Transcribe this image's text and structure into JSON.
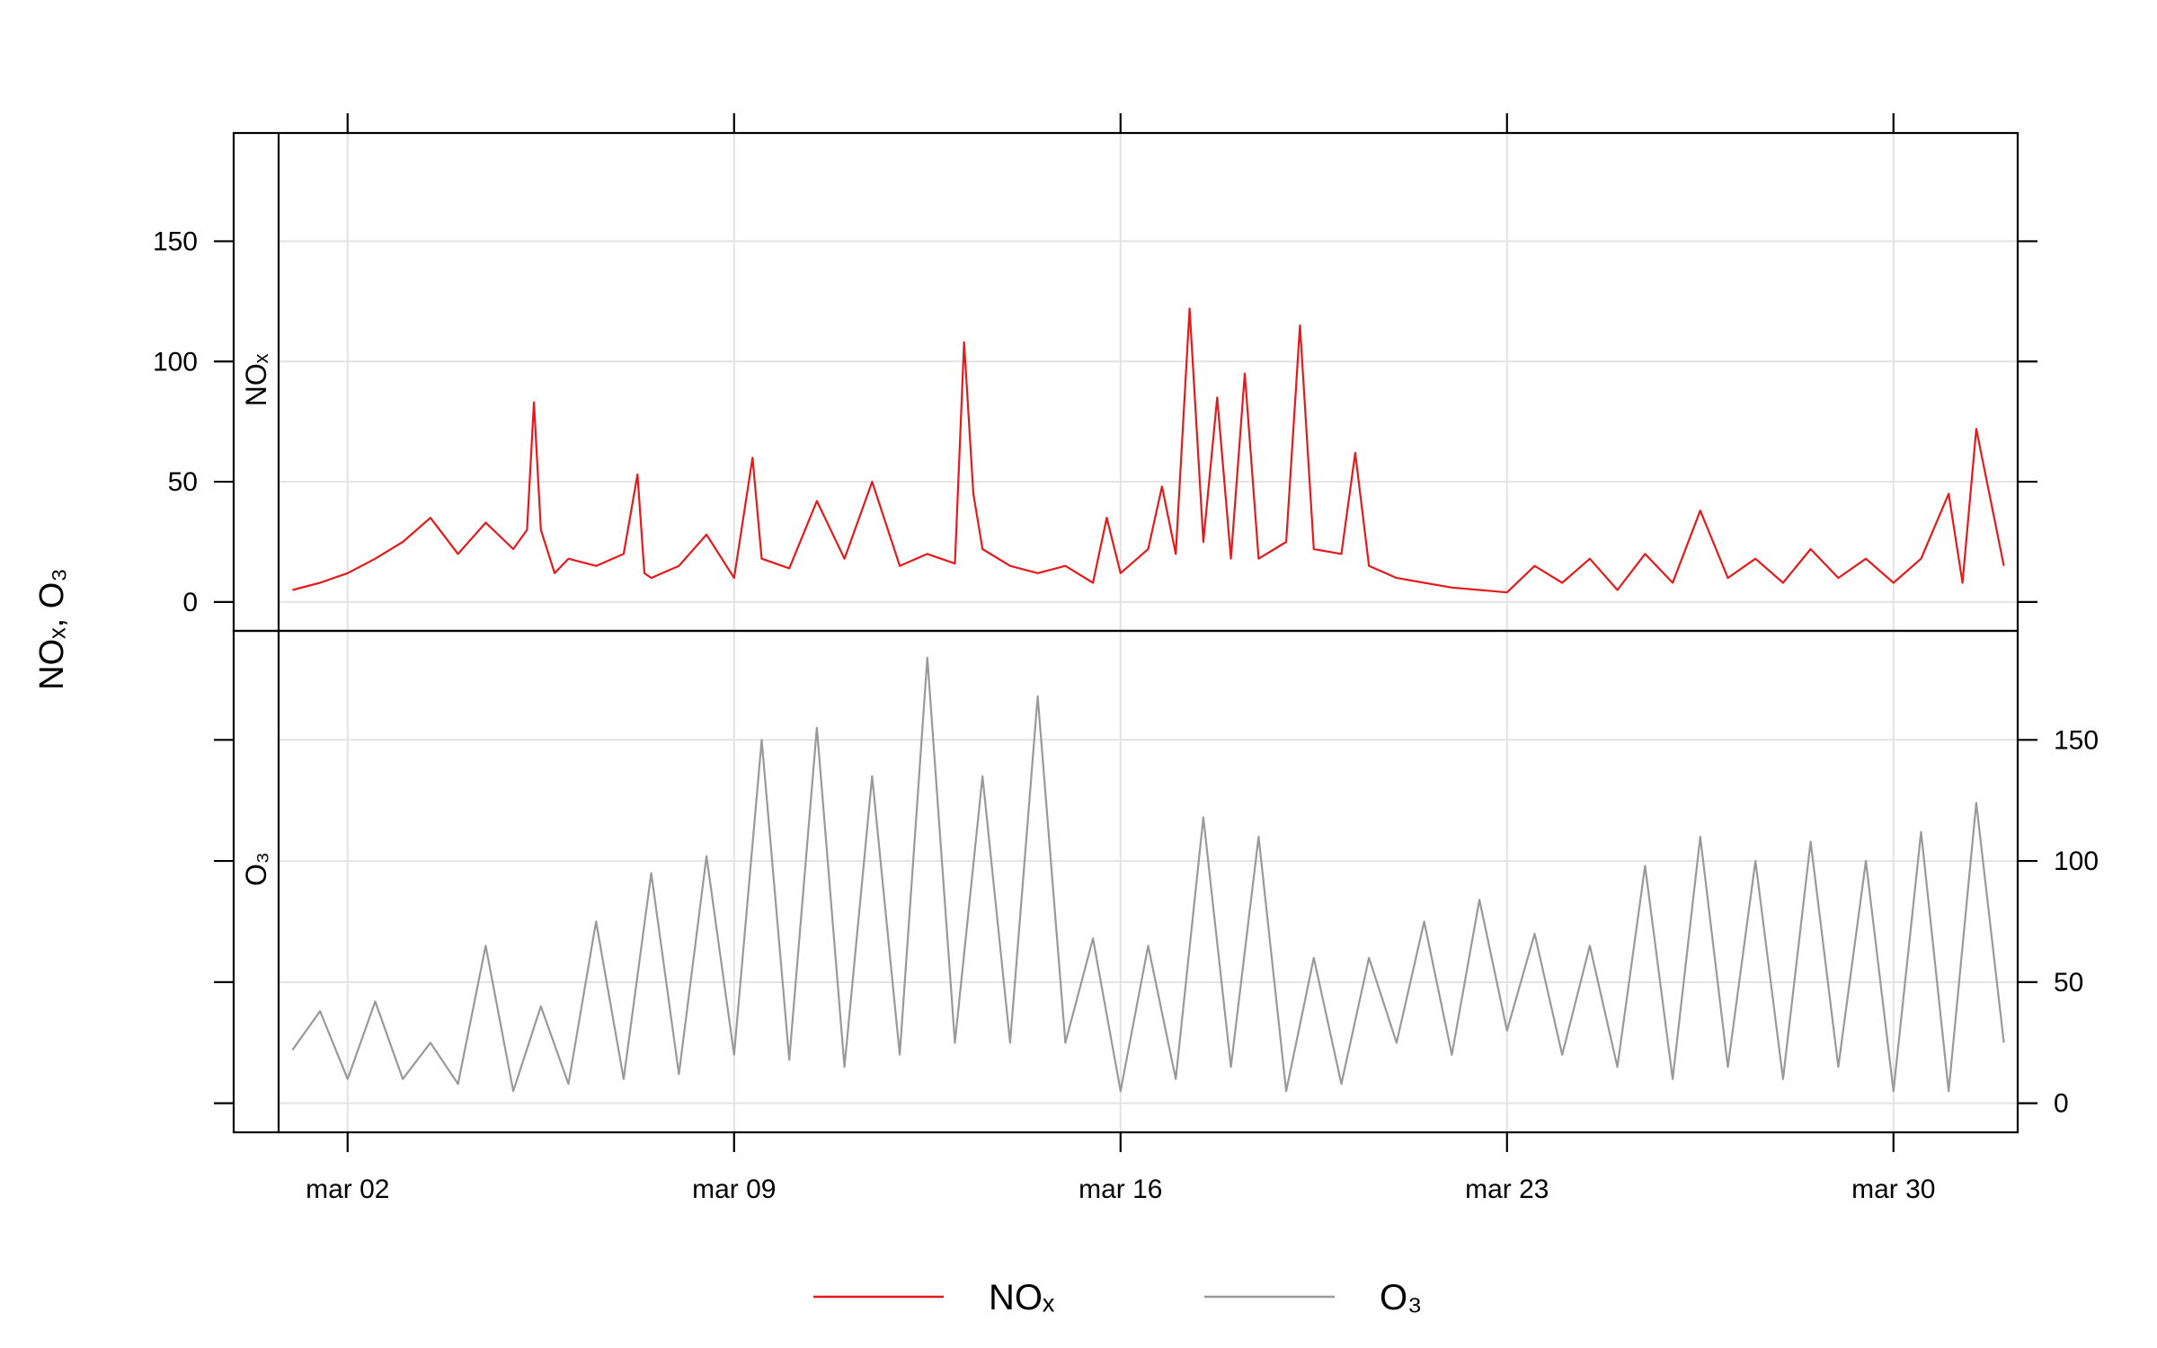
{
  "chart_data": {
    "type": "line",
    "layout": "two stacked panels sharing the x axis; NOx on top with y ticks on left, O3 below with y ticks on right",
    "ylabel": "NOₓ, O₃",
    "x_tick_labels": [
      "mar 02",
      "mar 09",
      "mar 16",
      "mar 23",
      "mar 30"
    ],
    "x_tick_dates": [
      "2024-03-02",
      "2024-03-09",
      "2024-03-16",
      "2024-03-23",
      "2024-03-30"
    ],
    "xlim": [
      "2024-02-29T18:00",
      "2024-04-01T06:00"
    ],
    "ylim": [
      -12,
      195
    ],
    "y_ticks": [
      0,
      50,
      100,
      150
    ],
    "y_tick_labels": [
      "0",
      "50",
      "100",
      "150"
    ],
    "grid": true,
    "legend": {
      "position": "bottom"
    },
    "series": [
      {
        "name": "NOₓ",
        "panel_label": "NOₓ",
        "color": "#e41a1c",
        "x": [
          "2024-03-01T00:00",
          "2024-03-01T12:00",
          "2024-03-02T00:00",
          "2024-03-02T12:00",
          "2024-03-03T00:00",
          "2024-03-03T12:00",
          "2024-03-04T00:00",
          "2024-03-04T12:00",
          "2024-03-05T00:00",
          "2024-03-05T06:00",
          "2024-03-05T09:00",
          "2024-03-05T12:00",
          "2024-03-05T18:00",
          "2024-03-06T00:00",
          "2024-03-06T12:00",
          "2024-03-07T00:00",
          "2024-03-07T06:00",
          "2024-03-07T09:00",
          "2024-03-07T12:00",
          "2024-03-08T00:00",
          "2024-03-08T12:00",
          "2024-03-09T00:00",
          "2024-03-09T08:00",
          "2024-03-09T12:00",
          "2024-03-10T00:00",
          "2024-03-10T12:00",
          "2024-03-11T00:00",
          "2024-03-11T12:00",
          "2024-03-12T00:00",
          "2024-03-12T12:00",
          "2024-03-13T00:00",
          "2024-03-13T04:00",
          "2024-03-13T08:00",
          "2024-03-13T12:00",
          "2024-03-14T00:00",
          "2024-03-14T12:00",
          "2024-03-15T00:00",
          "2024-03-15T12:00",
          "2024-03-15T18:00",
          "2024-03-16T00:00",
          "2024-03-16T12:00",
          "2024-03-16T18:00",
          "2024-03-17T00:00",
          "2024-03-17T06:00",
          "2024-03-17T12:00",
          "2024-03-17T18:00",
          "2024-03-18T00:00",
          "2024-03-18T06:00",
          "2024-03-18T12:00",
          "2024-03-19T00:00",
          "2024-03-19T06:00",
          "2024-03-19T12:00",
          "2024-03-20T00:00",
          "2024-03-20T06:00",
          "2024-03-20T12:00",
          "2024-03-21T00:00",
          "2024-03-21T12:00",
          "2024-03-22T00:00",
          "2024-03-22T12:00",
          "2024-03-23T00:00",
          "2024-03-23T12:00",
          "2024-03-24T00:00",
          "2024-03-24T12:00",
          "2024-03-25T00:00",
          "2024-03-25T12:00",
          "2024-03-26T00:00",
          "2024-03-26T12:00",
          "2024-03-27T00:00",
          "2024-03-27T12:00",
          "2024-03-28T00:00",
          "2024-03-28T12:00",
          "2024-03-29T00:00",
          "2024-03-29T12:00",
          "2024-03-30T00:00",
          "2024-03-30T12:00",
          "2024-03-31T00:00",
          "2024-03-31T06:00",
          "2024-03-31T12:00",
          "2024-04-01T00:00"
        ],
        "values": [
          5,
          8,
          12,
          18,
          25,
          35,
          20,
          33,
          22,
          30,
          83,
          30,
          12,
          18,
          15,
          20,
          53,
          12,
          10,
          15,
          28,
          10,
          60,
          18,
          14,
          42,
          18,
          50,
          15,
          20,
          16,
          108,
          45,
          22,
          15,
          12,
          15,
          8,
          35,
          12,
          22,
          48,
          20,
          122,
          25,
          85,
          18,
          95,
          18,
          25,
          115,
          22,
          20,
          62,
          15,
          10,
          8,
          6,
          5,
          4,
          15,
          8,
          18,
          5,
          20,
          8,
          38,
          10,
          18,
          8,
          22,
          10,
          18,
          8,
          18,
          45,
          8,
          72,
          15
        ]
      },
      {
        "name": "O₃",
        "panel_label": "O₃",
        "color": "#999999",
        "x": [
          "2024-03-01T00:00",
          "2024-03-01T12:00",
          "2024-03-02T00:00",
          "2024-03-02T12:00",
          "2024-03-03T00:00",
          "2024-03-03T12:00",
          "2024-03-04T00:00",
          "2024-03-04T12:00",
          "2024-03-05T00:00",
          "2024-03-05T12:00",
          "2024-03-06T00:00",
          "2024-03-06T12:00",
          "2024-03-07T00:00",
          "2024-03-07T12:00",
          "2024-03-08T00:00",
          "2024-03-08T12:00",
          "2024-03-09T00:00",
          "2024-03-09T12:00",
          "2024-03-10T00:00",
          "2024-03-10T12:00",
          "2024-03-11T00:00",
          "2024-03-11T12:00",
          "2024-03-12T00:00",
          "2024-03-12T12:00",
          "2024-03-13T00:00",
          "2024-03-13T12:00",
          "2024-03-14T00:00",
          "2024-03-14T12:00",
          "2024-03-15T00:00",
          "2024-03-15T12:00",
          "2024-03-16T00:00",
          "2024-03-16T12:00",
          "2024-03-17T00:00",
          "2024-03-17T12:00",
          "2024-03-18T00:00",
          "2024-03-18T12:00",
          "2024-03-19T00:00",
          "2024-03-19T12:00",
          "2024-03-20T00:00",
          "2024-03-20T12:00",
          "2024-03-21T00:00",
          "2024-03-21T12:00",
          "2024-03-22T00:00",
          "2024-03-22T12:00",
          "2024-03-23T00:00",
          "2024-03-23T12:00",
          "2024-03-24T00:00",
          "2024-03-24T12:00",
          "2024-03-25T00:00",
          "2024-03-25T12:00",
          "2024-03-26T00:00",
          "2024-03-26T12:00",
          "2024-03-27T00:00",
          "2024-03-27T12:00",
          "2024-03-28T00:00",
          "2024-03-28T12:00",
          "2024-03-29T00:00",
          "2024-03-29T12:00",
          "2024-03-30T00:00",
          "2024-03-30T12:00",
          "2024-03-31T00:00",
          "2024-03-31T12:00",
          "2024-04-01T00:00"
        ],
        "values": [
          22,
          38,
          10,
          42,
          10,
          25,
          8,
          65,
          5,
          40,
          8,
          75,
          10,
          95,
          12,
          102,
          20,
          150,
          18,
          155,
          15,
          135,
          20,
          184,
          25,
          135,
          25,
          168,
          25,
          68,
          5,
          65,
          10,
          118,
          15,
          110,
          5,
          60,
          8,
          60,
          25,
          75,
          20,
          84,
          30,
          70,
          20,
          65,
          15,
          98,
          10,
          110,
          15,
          100,
          10,
          108,
          15,
          100,
          5,
          112,
          5,
          124,
          25
        ]
      }
    ]
  }
}
